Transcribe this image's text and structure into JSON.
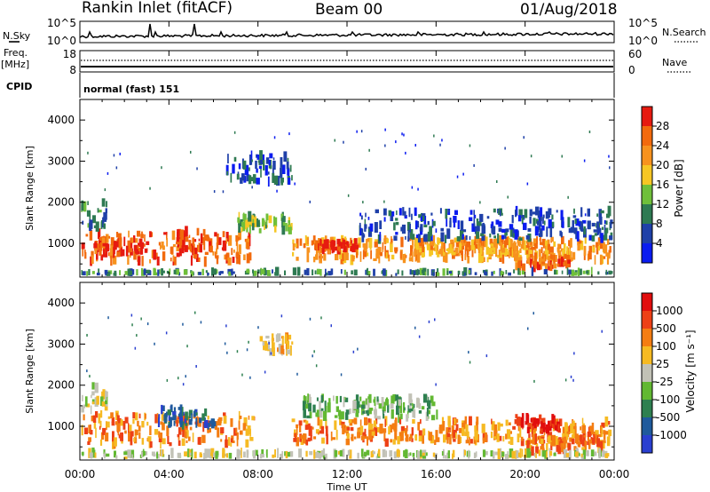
{
  "header": {
    "station": "Rankin Inlet (fitACF)",
    "beam": "Beam 00",
    "date": "01/Aug/2018"
  },
  "panels": {
    "nsky": {
      "label": "N.Sky",
      "ticks": [
        "10^5",
        "10^0"
      ]
    },
    "nsearch": {
      "label": "N.Search",
      "ticks": [
        "10^5",
        "10^0"
      ]
    },
    "freq": {
      "label_top": "Freq.",
      "label_bottom": "[MHz]",
      "ticks": [
        "18",
        "8"
      ]
    },
    "nave": {
      "label": "Nave",
      "ticks": [
        "60",
        "0"
      ]
    },
    "cpid": {
      "label": "CPID",
      "value": "normal (fast) 151"
    }
  },
  "axes": {
    "x_ticks": [
      "00:00",
      "04:00",
      "08:00",
      "12:00",
      "16:00",
      "20:00",
      "00:00"
    ],
    "xlabel": "Time UT",
    "ylabel": "Slant Range [km]",
    "y_ticks": [
      "1000",
      "2000",
      "3000",
      "4000"
    ]
  },
  "colors": {
    "power": [
      "#0a1cf0",
      "#1f40a8",
      "#2e7a52",
      "#6fbf3a",
      "#f6c624",
      "#f7921e",
      "#f26a0d",
      "#e61a10"
    ],
    "velocity": [
      "#2a3fd0",
      "#1f5a9c",
      "#2e8050",
      "#62b832",
      "#c2c2b6",
      "#f6ba22",
      "#f47d12",
      "#ed4016",
      "#e10d0d"
    ]
  },
  "chart_data": [
    {
      "type": "heatmap",
      "name": "power",
      "colorbar_label": "Power [dB]",
      "colorbar_ticks": [
        "4",
        "8",
        "12",
        "16",
        "20",
        "24",
        "28"
      ],
      "x_range_hours": [
        0,
        24
      ],
      "y_range_km": [
        180,
        4500
      ],
      "features": [
        {
          "t0": 0.0,
          "t1": 7.8,
          "r0": 550,
          "r1": 1250,
          "level": 6
        },
        {
          "t0": 4.3,
          "t1": 5.8,
          "r0": 700,
          "r1": 1300,
          "level": 7
        },
        {
          "t0": 1.0,
          "t1": 3.0,
          "r0": 700,
          "r1": 1050,
          "level": 7
        },
        {
          "t0": 0.0,
          "t1": 1.2,
          "r0": 1400,
          "r1": 2000,
          "level": 2
        },
        {
          "t0": 7.0,
          "t1": 9.5,
          "r0": 1300,
          "r1": 1700,
          "level": 3
        },
        {
          "t0": 9.5,
          "t1": 24.0,
          "r0": 600,
          "r1": 1100,
          "level": 5
        },
        {
          "t0": 10.5,
          "t1": 12.5,
          "r0": 850,
          "r1": 1050,
          "level": 7
        },
        {
          "t0": 15.0,
          "t1": 20.5,
          "r0": 750,
          "r1": 1100,
          "level": 5
        },
        {
          "t0": 19.5,
          "t1": 22.0,
          "r0": 400,
          "r1": 700,
          "level": 6
        },
        {
          "t0": 6.5,
          "t1": 9.5,
          "r0": 2500,
          "r1": 3200,
          "level": 1
        },
        {
          "t0": 12.5,
          "t1": 24.0,
          "r0": 1100,
          "r1": 1800,
          "level": 1
        },
        {
          "t0": 0.0,
          "t1": 24.0,
          "r0": 200,
          "r1": 320,
          "level": 2
        }
      ]
    },
    {
      "type": "heatmap",
      "name": "velocity",
      "colorbar_label": "Velocity [m s⁻¹]",
      "colorbar_ticks": [
        "1000",
        "500",
        "100",
        "25",
        "-25",
        "-100",
        "-500",
        "-1000"
      ],
      "x_range_hours": [
        0,
        24
      ],
      "y_range_km": [
        180,
        4500
      ],
      "features": [
        {
          "t0": 0.0,
          "t1": 7.8,
          "r0": 550,
          "r1": 1300,
          "level": 6
        },
        {
          "t0": 3.5,
          "t1": 6.0,
          "r0": 1000,
          "r1": 1450,
          "level": 1
        },
        {
          "t0": 0.0,
          "t1": 1.2,
          "r0": 1400,
          "r1": 2000,
          "level": 4
        },
        {
          "t0": 9.5,
          "t1": 24.0,
          "r0": 600,
          "r1": 1150,
          "level": 6
        },
        {
          "t0": 19.5,
          "t1": 21.5,
          "r0": 900,
          "r1": 1250,
          "level": 8
        },
        {
          "t0": 20.0,
          "t1": 23.5,
          "r0": 400,
          "r1": 700,
          "level": 6
        },
        {
          "t0": 8.0,
          "t1": 9.5,
          "r0": 2800,
          "r1": 3200,
          "level": 5
        },
        {
          "t0": 10.0,
          "t1": 16.0,
          "r0": 1200,
          "r1": 1700,
          "level": 3
        },
        {
          "t0": 0.0,
          "t1": 24.0,
          "r0": 200,
          "r1": 360,
          "level": 4
        }
      ]
    }
  ]
}
